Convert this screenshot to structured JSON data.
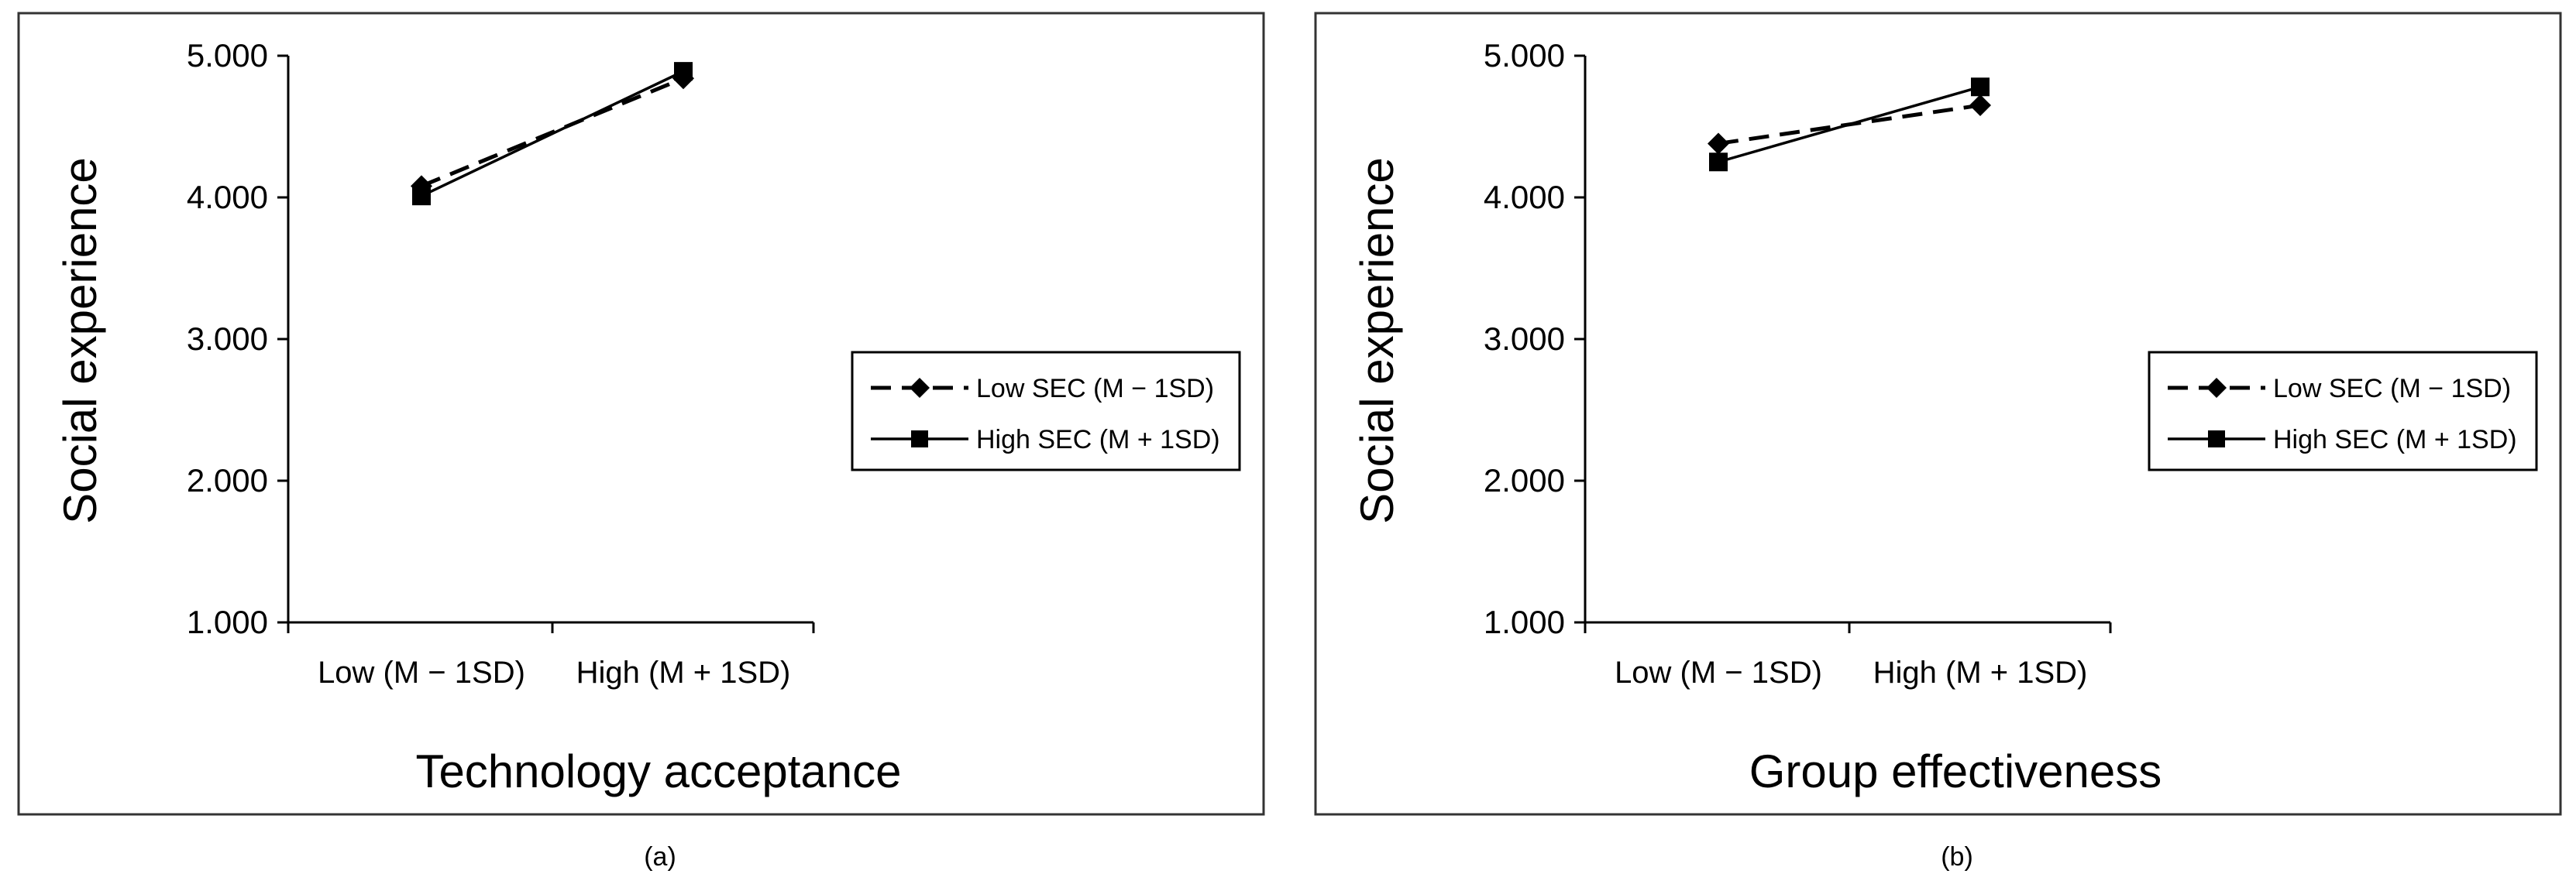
{
  "chart_data": [
    {
      "type": "line",
      "panel_label": "(a)",
      "xlabel": "Technology acceptance",
      "ylabel": "Social experience",
      "categories": [
        "Low (M − 1SD)",
        "High (M + 1SD)"
      ],
      "yticks": [
        "1.000",
        "2.000",
        "3.000",
        "4.000",
        "5.000"
      ],
      "ylim": [
        1,
        5
      ],
      "grid": false,
      "legend_position": "right",
      "series": [
        {
          "name": "Low SEC (M − 1SD)",
          "line_style": "dashed",
          "marker": "diamond",
          "values": [
            4.08,
            4.84
          ]
        },
        {
          "name": "High SEC (M + 1SD)",
          "line_style": "solid",
          "marker": "square",
          "values": [
            4.01,
            4.89
          ]
        }
      ]
    },
    {
      "type": "line",
      "panel_label": "(b)",
      "xlabel": "Group effectiveness",
      "ylabel": "Social experience",
      "categories": [
        "Low (M − 1SD)",
        "High (M + 1SD)"
      ],
      "yticks": [
        "1.000",
        "2.000",
        "3.000",
        "4.000",
        "5.000"
      ],
      "ylim": [
        1,
        5
      ],
      "grid": false,
      "legend_position": "right",
      "series": [
        {
          "name": "Low SEC (M − 1SD)",
          "line_style": "dashed",
          "marker": "diamond",
          "values": [
            4.38,
            4.65
          ]
        },
        {
          "name": "High SEC (M + 1SD)",
          "line_style": "solid",
          "marker": "square",
          "values": [
            4.25,
            4.78
          ]
        }
      ]
    }
  ]
}
